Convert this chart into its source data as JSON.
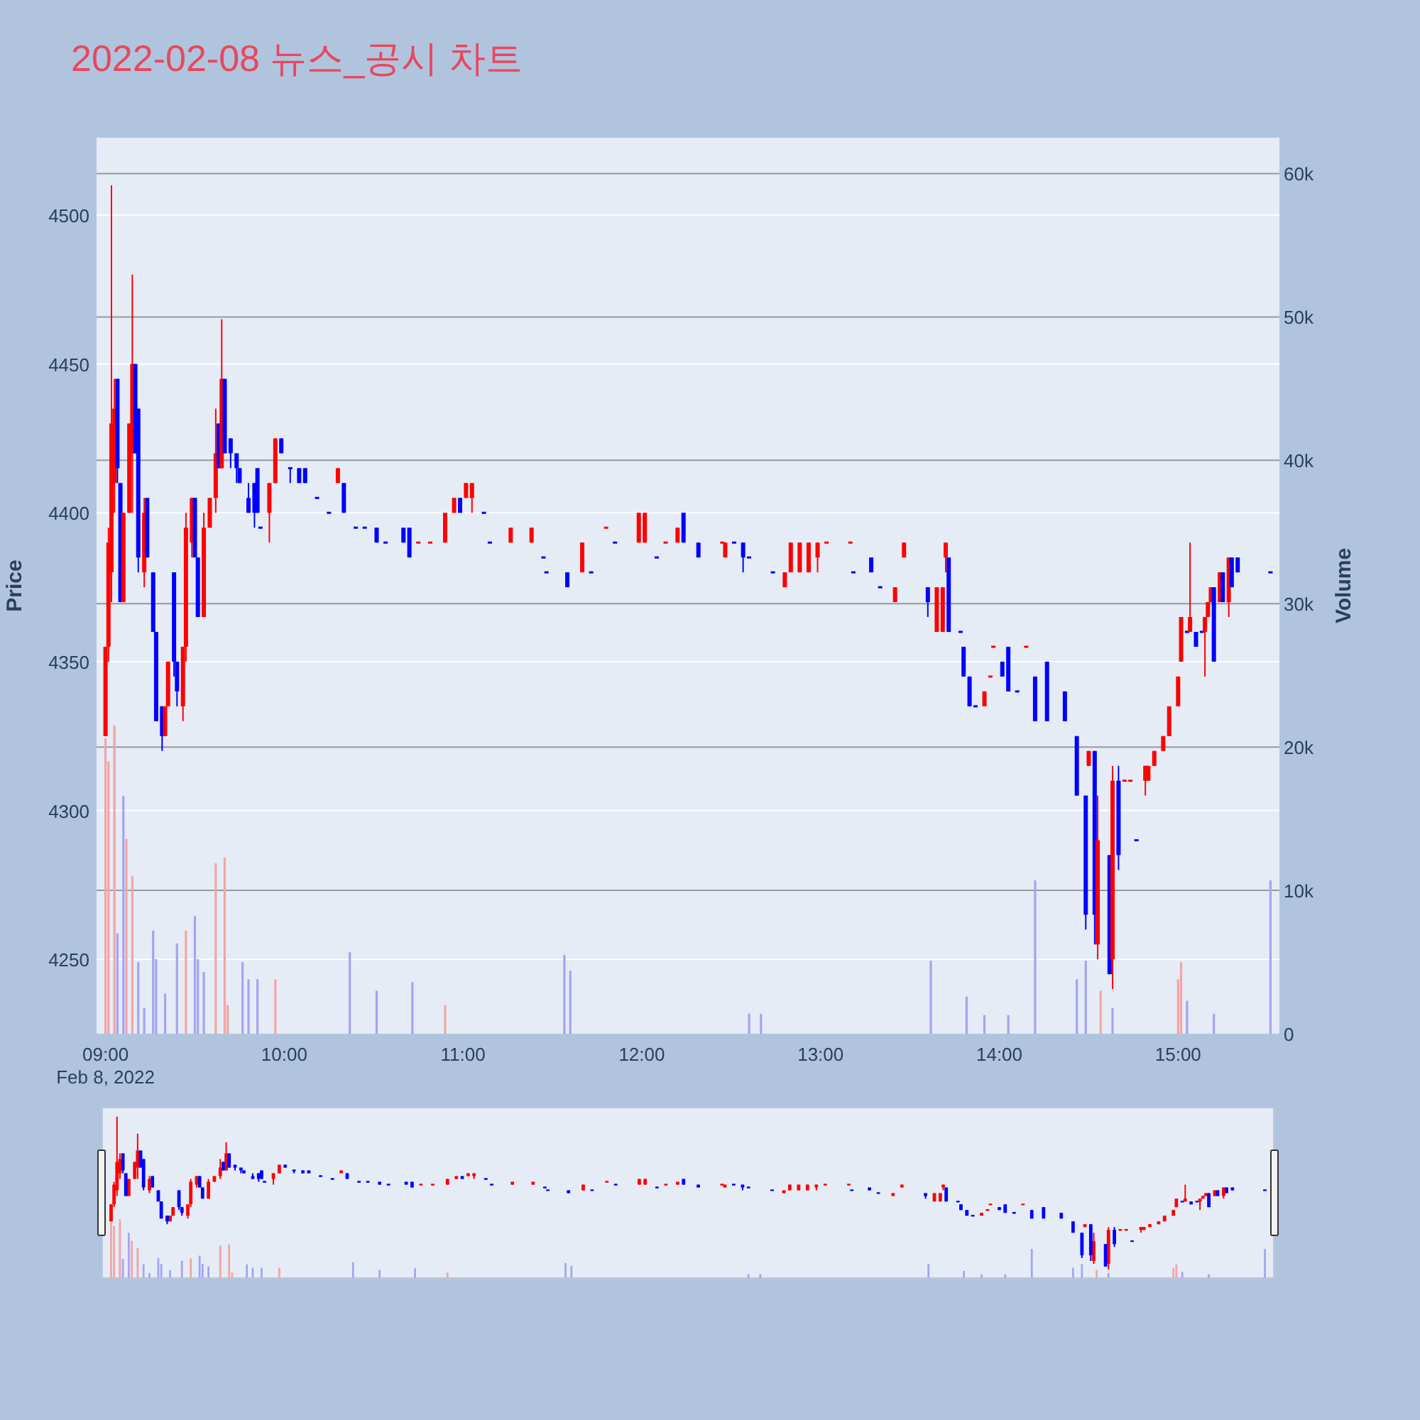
{
  "chart_data": {
    "type": "candlestick",
    "title": "2022-02-08 뉴스_공시 차트",
    "ylabel": "Price",
    "y2label": "Volume",
    "annotations": [
      "Feb 8, 2022"
    ],
    "grid": "y",
    "xlim": [
      "2022-02-08T08:57",
      "2022-02-08T15:34"
    ],
    "xticks": [
      {
        "value": "2022-02-08T09:00",
        "label": "09:00"
      },
      {
        "value": "2022-02-08T10:00",
        "label": "10:00"
      },
      {
        "value": "2022-02-08T11:00",
        "label": "11:00"
      },
      {
        "value": "2022-02-08T12:00",
        "label": "12:00"
      },
      {
        "value": "2022-02-08T13:00",
        "label": "13:00"
      },
      {
        "value": "2022-02-08T14:00",
        "label": "14:00"
      },
      {
        "value": "2022-02-08T15:00",
        "label": "15:00"
      }
    ],
    "ylim": [
      4225,
      4526
    ],
    "yticks": [
      4250,
      4300,
      4350,
      4400,
      4450,
      4500
    ],
    "y2lim": [
      0,
      62500
    ],
    "y2ticks": [
      0,
      {
        "value": 10000,
        "label": "10k"
      },
      {
        "value": 20000,
        "label": "20k"
      },
      {
        "value": 30000,
        "label": "30k"
      },
      {
        "value": 40000,
        "label": "40k"
      },
      {
        "value": 50000,
        "label": "50k"
      },
      {
        "value": 60000,
        "label": "60k"
      }
    ],
    "x": [
      "2022-02-08T09:00",
      "2022-02-08T09:01",
      "2022-02-08T09:02",
      "2022-02-08T09:03",
      "2022-02-08T09:04",
      "2022-02-08T09:05",
      "2022-02-08T09:06",
      "2022-02-08T09:08",
      "2022-02-08T09:09",
      "2022-02-08T09:10",
      "2022-02-08T09:11",
      "2022-02-08T09:13",
      "2022-02-08T09:14",
      "2022-02-08T09:16",
      "2022-02-08T09:17",
      "2022-02-08T09:19",
      "2022-02-08T09:20",
      "2022-02-08T09:21",
      "2022-02-08T09:23",
      "2022-02-08T09:24",
      "2022-02-08T09:26",
      "2022-02-08T09:27",
      "2022-02-08T09:29",
      "2022-02-08T09:30",
      "2022-02-08T09:31",
      "2022-02-08T09:33",
      "2022-02-08T09:35",
      "2022-02-08T09:37",
      "2022-02-08T09:38",
      "2022-02-08T09:39",
      "2022-02-08T09:40",
      "2022-02-08T09:42",
      "2022-02-08T09:44",
      "2022-02-08T09:45",
      "2022-02-08T09:48",
      "2022-02-08T09:50",
      "2022-02-08T09:51",
      "2022-02-08T09:52",
      "2022-02-08T09:55",
      "2022-02-08T09:57",
      "2022-02-08T09:59",
      "2022-02-08T10:02",
      "2022-02-08T10:05",
      "2022-02-08T10:07",
      "2022-02-08T10:11",
      "2022-02-08T10:15",
      "2022-02-08T10:18",
      "2022-02-08T10:20",
      "2022-02-08T10:24",
      "2022-02-08T10:27",
      "2022-02-08T10:31",
      "2022-02-08T10:34",
      "2022-02-08T10:40",
      "2022-02-08T10:42",
      "2022-02-08T10:45",
      "2022-02-08T10:49",
      "2022-02-08T10:54",
      "2022-02-08T10:57",
      "2022-02-08T10:59",
      "2022-02-08T11:01",
      "2022-02-08T11:03",
      "2022-02-08T11:07",
      "2022-02-08T11:09",
      "2022-02-08T11:16",
      "2022-02-08T11:23",
      "2022-02-08T11:27",
      "2022-02-08T11:28",
      "2022-02-08T11:35",
      "2022-02-08T11:40",
      "2022-02-08T11:43",
      "2022-02-08T11:48",
      "2022-02-08T11:51",
      "2022-02-08T11:59",
      "2022-02-08T12:01",
      "2022-02-08T12:05",
      "2022-02-08T12:08",
      "2022-02-08T12:12",
      "2022-02-08T12:14",
      "2022-02-08T12:19",
      "2022-02-08T12:27",
      "2022-02-08T12:28",
      "2022-02-08T12:31",
      "2022-02-08T12:34",
      "2022-02-08T12:36",
      "2022-02-08T12:44",
      "2022-02-08T12:48",
      "2022-02-08T12:50",
      "2022-02-08T12:53",
      "2022-02-08T12:56",
      "2022-02-08T12:59",
      "2022-02-08T13:02",
      "2022-02-08T13:10",
      "2022-02-08T13:11",
      "2022-02-08T13:17",
      "2022-02-08T13:20",
      "2022-02-08T13:25",
      "2022-02-08T13:28",
      "2022-02-08T13:36",
      "2022-02-08T13:39",
      "2022-02-08T13:41",
      "2022-02-08T13:42",
      "2022-02-08T13:43",
      "2022-02-08T13:47",
      "2022-02-08T13:48",
      "2022-02-08T13:50",
      "2022-02-08T13:52",
      "2022-02-08T13:55",
      "2022-02-08T13:57",
      "2022-02-08T13:58",
      "2022-02-08T14:01",
      "2022-02-08T14:03",
      "2022-02-08T14:06",
      "2022-02-08T14:09",
      "2022-02-08T14:12",
      "2022-02-08T14:16",
      "2022-02-08T14:22",
      "2022-02-08T14:26",
      "2022-02-08T14:29",
      "2022-02-08T14:30",
      "2022-02-08T14:32",
      "2022-02-08T14:33",
      "2022-02-08T14:37",
      "2022-02-08T14:38",
      "2022-02-08T14:40",
      "2022-02-08T14:42",
      "2022-02-08T14:44",
      "2022-02-08T14:46",
      "2022-02-08T14:49",
      "2022-02-08T14:50",
      "2022-02-08T14:52",
      "2022-02-08T14:55",
      "2022-02-08T14:57",
      "2022-02-08T15:00",
      "2022-02-08T15:01",
      "2022-02-08T15:03",
      "2022-02-08T15:04",
      "2022-02-08T15:06",
      "2022-02-08T15:08",
      "2022-02-08T15:09",
      "2022-02-08T15:10",
      "2022-02-08T15:11",
      "2022-02-08T15:12",
      "2022-02-08T15:14",
      "2022-02-08T15:15",
      "2022-02-08T15:17",
      "2022-02-08T15:18",
      "2022-02-08T15:20",
      "2022-02-08T15:31"
    ],
    "ohlc": [
      [
        4325,
        4355,
        4325,
        4355
      ],
      [
        4355,
        4395,
        4350,
        4390
      ],
      [
        4380,
        4510,
        4370,
        4430
      ],
      [
        4410,
        4445,
        4400,
        4435
      ],
      [
        4445,
        4445,
        4410,
        4415
      ],
      [
        4410,
        4410,
        4370,
        4370
      ],
      [
        4370,
        4400,
        4370,
        4400
      ],
      [
        4400,
        4430,
        4400,
        4430
      ],
      [
        4420,
        4480,
        4400,
        4450
      ],
      [
        4450,
        4450,
        4420,
        4420
      ],
      [
        4435,
        4435,
        4380,
        4385
      ],
      [
        4380,
        4405,
        4375,
        4400
      ],
      [
        4405,
        4405,
        4385,
        4385
      ],
      [
        4380,
        4380,
        4360,
        4360
      ],
      [
        4360,
        4360,
        4330,
        4330
      ],
      [
        4335,
        4335,
        4320,
        4325
      ],
      [
        4325,
        4335,
        4325,
        4335
      ],
      [
        4335,
        4350,
        4335,
        4350
      ],
      [
        4380,
        4380,
        4345,
        4350
      ],
      [
        4350,
        4350,
        4335,
        4340
      ],
      [
        4335,
        4355,
        4330,
        4355
      ],
      [
        4355,
        4400,
        4350,
        4395
      ],
      [
        4390,
        4405,
        4385,
        4405
      ],
      [
        4405,
        4405,
        4385,
        4385
      ],
      [
        4385,
        4385,
        4365,
        4365
      ],
      [
        4365,
        4400,
        4365,
        4395
      ],
      [
        4395,
        4405,
        4395,
        4405
      ],
      [
        4405,
        4435,
        4400,
        4420
      ],
      [
        4430,
        4430,
        4415,
        4415
      ],
      [
        4415,
        4465,
        4415,
        4445
      ],
      [
        4445,
        4445,
        4420,
        4420
      ],
      [
        4425,
        4425,
        4415,
        4420
      ],
      [
        4420,
        4420,
        4410,
        4415
      ],
      [
        4415,
        4415,
        4410,
        4410
      ],
      [
        4405,
        4410,
        4400,
        4400
      ],
      [
        4410,
        4410,
        4395,
        4400
      ],
      [
        4415,
        4415,
        4400,
        4400
      ],
      [
        4395,
        4395,
        4395,
        4395
      ],
      [
        4400,
        4410,
        4390,
        4410
      ],
      [
        4410,
        4425,
        4410,
        4425
      ],
      [
        4425,
        4425,
        4420,
        4420
      ],
      [
        4415,
        4415,
        4410,
        4415
      ],
      [
        4415,
        4415,
        4410,
        4410
      ],
      [
        4415,
        4415,
        4410,
        4410
      ],
      [
        4405,
        4405,
        4405,
        4405
      ],
      [
        4400,
        4400,
        4400,
        4400
      ],
      [
        4410,
        4415,
        4410,
        4415
      ],
      [
        4410,
        4410,
        4400,
        4400
      ],
      [
        4395,
        4395,
        4395,
        4395
      ],
      [
        4395,
        4395,
        4395,
        4395
      ],
      [
        4395,
        4395,
        4390,
        4390
      ],
      [
        4390,
        4390,
        4390,
        4390
      ],
      [
        4395,
        4395,
        4390,
        4390
      ],
      [
        4395,
        4395,
        4385,
        4385
      ],
      [
        4390,
        4390,
        4390,
        4390
      ],
      [
        4390,
        4390,
        4390,
        4390
      ],
      [
        4390,
        4400,
        4390,
        4400
      ],
      [
        4400,
        4405,
        4400,
        4405
      ],
      [
        4405,
        4405,
        4400,
        4400
      ],
      [
        4405,
        4410,
        4405,
        4410
      ],
      [
        4405,
        4410,
        4400,
        4410
      ],
      [
        4400,
        4400,
        4400,
        4400
      ],
      [
        4390,
        4390,
        4390,
        4390
      ],
      [
        4390,
        4395,
        4390,
        4395
      ],
      [
        4390,
        4395,
        4390,
        4395
      ],
      [
        4385,
        4385,
        4385,
        4385
      ],
      [
        4380,
        4380,
        4380,
        4380
      ],
      [
        4380,
        4380,
        4375,
        4375
      ],
      [
        4380,
        4390,
        4380,
        4390
      ],
      [
        4380,
        4380,
        4380,
        4380
      ],
      [
        4395,
        4395,
        4395,
        4395
      ],
      [
        4390,
        4390,
        4390,
        4390
      ],
      [
        4390,
        4400,
        4390,
        4400
      ],
      [
        4390,
        4400,
        4390,
        4400
      ],
      [
        4385,
        4385,
        4385,
        4385
      ],
      [
        4390,
        4390,
        4390,
        4390
      ],
      [
        4390,
        4395,
        4390,
        4395
      ],
      [
        4400,
        4400,
        4390,
        4390
      ],
      [
        4390,
        4390,
        4385,
        4385
      ],
      [
        4390,
        4390,
        4390,
        4390
      ],
      [
        4385,
        4390,
        4385,
        4390
      ],
      [
        4390,
        4390,
        4390,
        4390
      ],
      [
        4390,
        4390,
        4380,
        4385
      ],
      [
        4385,
        4385,
        4385,
        4385
      ],
      [
        4380,
        4380,
        4380,
        4380
      ],
      [
        4375,
        4380,
        4375,
        4380
      ],
      [
        4380,
        4390,
        4380,
        4390
      ],
      [
        4380,
        4390,
        4380,
        4390
      ],
      [
        4380,
        4390,
        4380,
        4390
      ],
      [
        4385,
        4390,
        4380,
        4390
      ],
      [
        4390,
        4390,
        4390,
        4390
      ],
      [
        4390,
        4390,
        4390,
        4390
      ],
      [
        4380,
        4380,
        4380,
        4380
      ],
      [
        4385,
        4385,
        4380,
        4380
      ],
      [
        4375,
        4375,
        4375,
        4375
      ],
      [
        4370,
        4375,
        4370,
        4375
      ],
      [
        4385,
        4390,
        4385,
        4390
      ],
      [
        4375,
        4375,
        4365,
        4370
      ],
      [
        4360,
        4375,
        4360,
        4375
      ],
      [
        4360,
        4375,
        4360,
        4375
      ],
      [
        4385,
        4390,
        4380,
        4390
      ],
      [
        4385,
        4385,
        4360,
        4360
      ],
      [
        4360,
        4360,
        4360,
        4360
      ],
      [
        4355,
        4355,
        4345,
        4345
      ],
      [
        4345,
        4345,
        4335,
        4335
      ],
      [
        4335,
        4335,
        4335,
        4335
      ],
      [
        4335,
        4340,
        4335,
        4340
      ],
      [
        4345,
        4345,
        4345,
        4345
      ],
      [
        4355,
        4355,
        4355,
        4355
      ],
      [
        4350,
        4350,
        4345,
        4345
      ],
      [
        4355,
        4355,
        4340,
        4340
      ],
      [
        4340,
        4340,
        4340,
        4340
      ],
      [
        4355,
        4355,
        4355,
        4355
      ],
      [
        4345,
        4345,
        4330,
        4330
      ],
      [
        4350,
        4350,
        4330,
        4330
      ],
      [
        4340,
        4340,
        4330,
        4330
      ],
      [
        4325,
        4325,
        4305,
        4305
      ],
      [
        4305,
        4305,
        4260,
        4265
      ],
      [
        4315,
        4320,
        4315,
        4320
      ],
      [
        4320,
        4320,
        4255,
        4265
      ],
      [
        4255,
        4305,
        4250,
        4290
      ],
      [
        4285,
        4285,
        4245,
        4245
      ],
      [
        4250,
        4315,
        4240,
        4310
      ],
      [
        4310,
        4315,
        4280,
        4285
      ],
      [
        4310,
        4310,
        4310,
        4310
      ],
      [
        4310,
        4310,
        4310,
        4310
      ],
      [
        4290,
        4290,
        4290,
        4290
      ],
      [
        4310,
        4315,
        4305,
        4315
      ],
      [
        4310,
        4315,
        4310,
        4315
      ],
      [
        4315,
        4320,
        4315,
        4320
      ],
      [
        4320,
        4325,
        4320,
        4325
      ],
      [
        4325,
        4335,
        4325,
        4335
      ],
      [
        4335,
        4345,
        4335,
        4345
      ],
      [
        4350,
        4365,
        4350,
        4365
      ],
      [
        4360,
        4360,
        4360,
        4360
      ],
      [
        4360,
        4390,
        4360,
        4365
      ],
      [
        4360,
        4360,
        4355,
        4355
      ],
      [
        4360,
        4360,
        4360,
        4360
      ],
      [
        4360,
        4365,
        4345,
        4365
      ],
      [
        4365,
        4370,
        4365,
        4370
      ],
      [
        4370,
        4375,
        4370,
        4375
      ],
      [
        4375,
        4375,
        4350,
        4350
      ],
      [
        4370,
        4380,
        4370,
        4380
      ],
      [
        4380,
        4380,
        4370,
        4370
      ],
      [
        4370,
        4385,
        4365,
        4385
      ],
      [
        4385,
        4385,
        4375,
        4375
      ],
      [
        4385,
        4385,
        4380,
        4380
      ],
      [
        4380,
        4380,
        4380,
        4380
      ]
    ],
    "colors": [
      "#ff0000",
      "#ff0000",
      "#ff0000",
      "#ff0000",
      "#0000ff",
      "#0000ff",
      "#ff0000",
      "#ff0000",
      "#ff0000",
      "#0000ff",
      "#0000ff",
      "#ff0000",
      "#0000ff",
      "#0000ff",
      "#0000ff",
      "#0000ff",
      "#ff0000",
      "#ff0000",
      "#0000ff",
      "#0000ff",
      "#ff0000",
      "#ff0000",
      "#ff0000",
      "#0000ff",
      "#0000ff",
      "#ff0000",
      "#ff0000",
      "#ff0000",
      "#0000ff",
      "#ff0000",
      "#0000ff",
      "#0000ff",
      "#0000ff",
      "#0000ff",
      "#0000ff",
      "#0000ff",
      "#0000ff",
      "#0000ff",
      "#ff0000",
      "#ff0000",
      "#0000ff",
      "#0000ff",
      "#0000ff",
      "#0000ff",
      "#0000ff",
      "#0000ff",
      "#ff0000",
      "#0000ff",
      "#0000ff",
      "#0000ff",
      "#0000ff",
      "#0000ff",
      "#0000ff",
      "#0000ff",
      "#ff0000",
      "#ff0000",
      "#ff0000",
      "#ff0000",
      "#0000ff",
      "#ff0000",
      "#ff0000",
      "#0000ff",
      "#0000ff",
      "#ff0000",
      "#ff0000",
      "#0000ff",
      "#0000ff",
      "#0000ff",
      "#ff0000",
      "#0000ff",
      "#ff0000",
      "#0000ff",
      "#ff0000",
      "#ff0000",
      "#0000ff",
      "#ff0000",
      "#ff0000",
      "#0000ff",
      "#0000ff",
      "#ff0000",
      "#ff0000",
      "#0000ff",
      "#0000ff",
      "#0000ff",
      "#0000ff",
      "#ff0000",
      "#ff0000",
      "#ff0000",
      "#ff0000",
      "#ff0000",
      "#ff0000",
      "#ff0000",
      "#0000ff",
      "#0000ff",
      "#0000ff",
      "#ff0000",
      "#ff0000",
      "#0000ff",
      "#ff0000",
      "#ff0000",
      "#ff0000",
      "#0000ff",
      "#0000ff",
      "#0000ff",
      "#0000ff",
      "#0000ff",
      "#ff0000",
      "#ff0000",
      "#ff0000",
      "#0000ff",
      "#0000ff",
      "#0000ff",
      "#ff0000",
      "#0000ff",
      "#0000ff",
      "#0000ff",
      "#0000ff",
      "#0000ff",
      "#ff0000",
      "#0000ff",
      "#ff0000",
      "#0000ff",
      "#ff0000",
      "#0000ff",
      "#ff0000",
      "#ff0000",
      "#0000ff",
      "#ff0000",
      "#ff0000",
      "#ff0000",
      "#ff0000",
      "#ff0000",
      "#ff0000",
      "#ff0000",
      "#0000ff",
      "#ff0000",
      "#0000ff",
      "#0000ff",
      "#ff0000",
      "#ff0000",
      "#ff0000",
      "#0000ff",
      "#ff0000",
      "#0000ff",
      "#ff0000",
      "#0000ff",
      "#0000ff",
      "#0000ff"
    ],
    "series": [
      {
        "type": "bar",
        "axis": "y2",
        "x": [
          "2022-02-08T09:00",
          "2022-02-08T09:01",
          "2022-02-08T09:03",
          "2022-02-08T09:04",
          "2022-02-08T09:06",
          "2022-02-08T09:07",
          "2022-02-08T09:09",
          "2022-02-08T09:11",
          "2022-02-08T09:13",
          "2022-02-08T09:16",
          "2022-02-08T09:17",
          "2022-02-08T09:20",
          "2022-02-08T09:24",
          "2022-02-08T09:27",
          "2022-02-08T09:30",
          "2022-02-08T09:31",
          "2022-02-08T09:33",
          "2022-02-08T09:37",
          "2022-02-08T09:40",
          "2022-02-08T09:41",
          "2022-02-08T09:46",
          "2022-02-08T09:48",
          "2022-02-08T09:51",
          "2022-02-08T09:57",
          "2022-02-08T10:22",
          "2022-02-08T10:31",
          "2022-02-08T10:43",
          "2022-02-08T10:54",
          "2022-02-08T11:34",
          "2022-02-08T11:36",
          "2022-02-08T12:36",
          "2022-02-08T12:40",
          "2022-02-08T13:37",
          "2022-02-08T13:49",
          "2022-02-08T13:55",
          "2022-02-08T14:03",
          "2022-02-08T14:12",
          "2022-02-08T14:26",
          "2022-02-08T14:29",
          "2022-02-08T14:34",
          "2022-02-08T14:38",
          "2022-02-08T15:00",
          "2022-02-08T15:01",
          "2022-02-08T15:03",
          "2022-02-08T15:12",
          "2022-02-08T15:31"
        ],
        "values": [
          20600,
          19000,
          21500,
          7000,
          16600,
          13600,
          11000,
          5000,
          1800,
          7200,
          5200,
          2800,
          6300,
          7200,
          8200,
          5200,
          4300,
          11900,
          12300,
          2000,
          5000,
          3800,
          3800,
          3800,
          5700,
          3000,
          3600,
          2000,
          5500,
          4400,
          1400,
          1400,
          5100,
          2600,
          1300,
          1300,
          10700,
          3800,
          5100,
          3000,
          1800,
          3800,
          5000,
          2300,
          1400,
          10700
        ],
        "colors": [
          "#f4a4a4",
          "#f4a4a4",
          "#f4a4a4",
          "#a4a4f4",
          "#a4a4f4",
          "#f4a4a4",
          "#f4a4a4",
          "#a4a4f4",
          "#a4a4f4",
          "#a4a4f4",
          "#a4a4f4",
          "#a4a4f4",
          "#a4a4f4",
          "#f4a4a4",
          "#a4a4f4",
          "#a4a4f4",
          "#a4a4f4",
          "#f4a4a4",
          "#f4a4a4",
          "#f4a4a4",
          "#a4a4f4",
          "#a4a4f4",
          "#a4a4f4",
          "#f4a4a4",
          "#a4a4f4",
          "#a4a4f4",
          "#a4a4f4",
          "#f4a4a4",
          "#a4a4f4",
          "#a4a4f4",
          "#a4a4f4",
          "#a4a4f4",
          "#a4a4f4",
          "#a4a4f4",
          "#a4a4f4",
          "#a4a4f4",
          "#a4a4f4",
          "#a4a4f4",
          "#a4a4f4",
          "#f4a4a4",
          "#a4a4f4",
          "#f4a4a4",
          "#f4a4a4",
          "#a4a4f4",
          "#a4a4f4",
          "#a4a4f4"
        ]
      }
    ]
  }
}
